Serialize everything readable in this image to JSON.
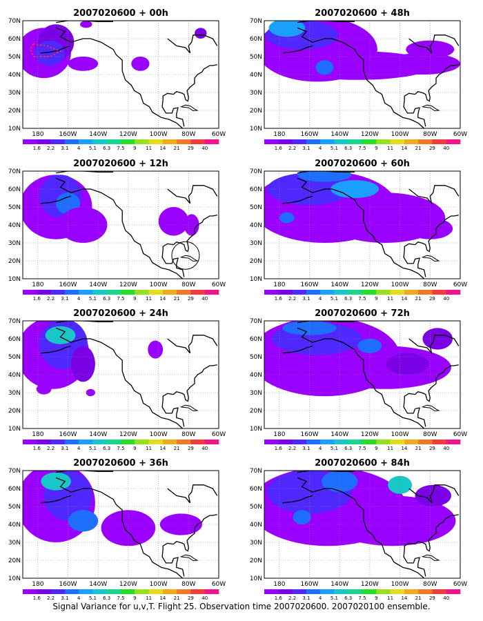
{
  "caption": "Signal Variance for u,v,T. Flight 25. Observation time 2007020600. 2007020100 ensemble.",
  "colorbar": {
    "labels": [
      "1.6",
      "2.2",
      "3.1",
      "4",
      "5.1",
      "6.3",
      "7.5",
      "9",
      "11",
      "14",
      "21",
      "29",
      "40"
    ],
    "colors": [
      "#9a00ff",
      "#7a00e6",
      "#4e28ff",
      "#1e6eff",
      "#1aa0ff",
      "#18c8c8",
      "#18d68c",
      "#2adc2a",
      "#96e01e",
      "#e6dc1e",
      "#f0aa1e",
      "#f07828",
      "#f03c3c",
      "#f0148c"
    ]
  },
  "axes": {
    "lat_labels": [
      "10N",
      "20N",
      "30N",
      "40N",
      "50N",
      "60N",
      "70N"
    ],
    "lon_labels": [
      "180",
      "160W",
      "140W",
      "120W",
      "100W",
      "80W",
      "60W"
    ]
  },
  "panels": [
    {
      "id": "p00",
      "title": "2007020600 + 00h",
      "lead_hours": 0
    },
    {
      "id": "p48",
      "title": "2007020600 + 48h",
      "lead_hours": 48
    },
    {
      "id": "p12",
      "title": "2007020600 + 12h",
      "lead_hours": 12
    },
    {
      "id": "p60",
      "title": "2007020600 + 60h",
      "lead_hours": 60
    },
    {
      "id": "p24",
      "title": "2007020600 + 24h",
      "lead_hours": 24
    },
    {
      "id": "p72",
      "title": "2007020600 + 72h",
      "lead_hours": 72
    },
    {
      "id": "p36",
      "title": "2007020600 + 36h",
      "lead_hours": 36
    },
    {
      "id": "p84",
      "title": "2007020600 + 84h",
      "lead_hours": 84
    }
  ]
}
